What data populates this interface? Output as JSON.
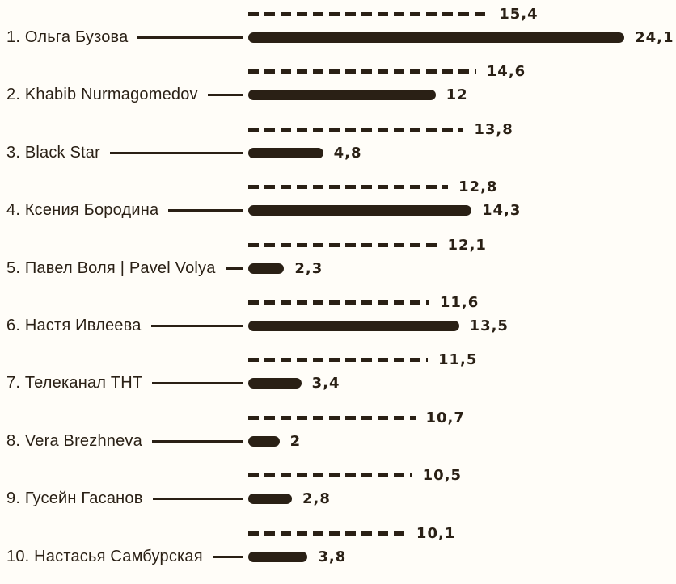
{
  "colors": {
    "ink": "#2a2015",
    "background": "#fffdf8"
  },
  "chart_data": {
    "type": "bar",
    "orientation": "horizontal",
    "title": "",
    "legend": "none",
    "grid": "off",
    "value_range": [
      0,
      24.1
    ],
    "categories": [
      "1. Ольга Бузова",
      "2. Khabib Nurmagomedov",
      "3. Black Star",
      "4. Ксения Бородина",
      "5. Павел Воля | Pavel Volya",
      "6. Настя Ивлеева",
      "7. Телеканал ТНТ",
      "8. Vera Brezhneva",
      "9. Гусейн Гасанов",
      "10. Настасья Самбурская"
    ],
    "series": [
      {
        "name": "series-1-dashed",
        "line_style": "dashed",
        "values": [
          15.4,
          14.6,
          13.8,
          12.8,
          12.1,
          11.6,
          11.5,
          10.7,
          10.5,
          10.1
        ],
        "value_labels": [
          "15,4",
          "14,6",
          "13,8",
          "12,8",
          "12,1",
          "11,6",
          "11,5",
          "10,7",
          "10,5",
          "10,1"
        ]
      },
      {
        "name": "series-2-solid",
        "line_style": "solid",
        "values": [
          24.1,
          12,
          4.8,
          14.3,
          2.3,
          13.5,
          3.4,
          2,
          2.8,
          3.8
        ],
        "value_labels": [
          "24,1",
          "12",
          "4,8",
          "14,3",
          "2,3",
          "13,5",
          "3,4",
          "2",
          "2,8",
          "3,8"
        ]
      }
    ]
  }
}
